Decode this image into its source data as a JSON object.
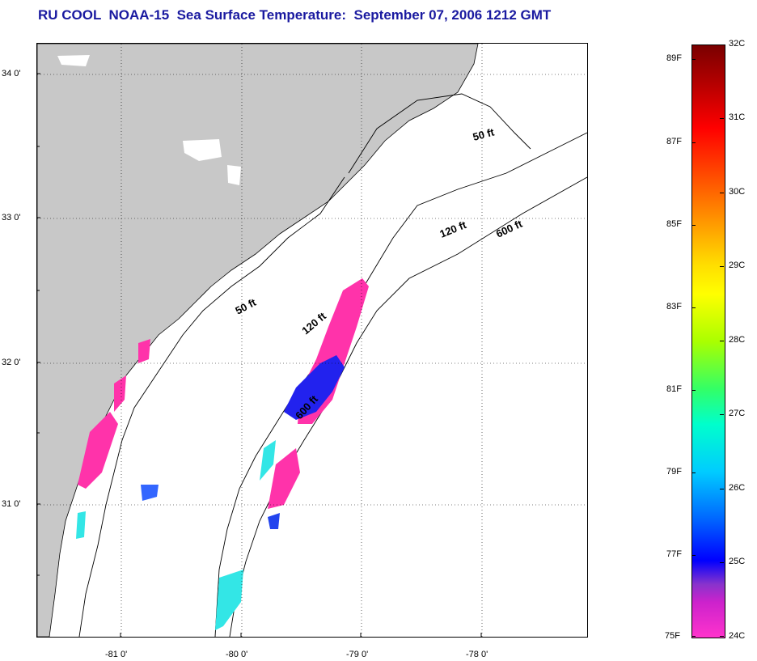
{
  "title": "RU COOL  NOAA-15  Sea Surface Temperature:  September 07, 2006 1212 GMT",
  "map": {
    "lat_labels": [
      "34 0'",
      "33 0'",
      "32 0'",
      "31 0'"
    ],
    "lon_labels": [
      "-81 0'",
      "-80 0'",
      "-79 0'",
      "-78 0'"
    ],
    "contour_labels": [
      "50 ft",
      "50 ft",
      "120 ft",
      "120 ft",
      "600 ft",
      "600 ft"
    ],
    "colors": {
      "land": "#c8c8c8",
      "cold_pink": "#ff33aa",
      "blue": "#1a1aff",
      "cyan": "#33e6e6"
    }
  },
  "colorbar": {
    "celsius": [
      "32C",
      "31C",
      "30C",
      "29C",
      "28C",
      "27C",
      "26C",
      "25C",
      "24C"
    ],
    "fahrenheit": [
      "89F",
      "87F",
      "85F",
      "83F",
      "81F",
      "79F",
      "77F",
      "75F"
    ]
  }
}
